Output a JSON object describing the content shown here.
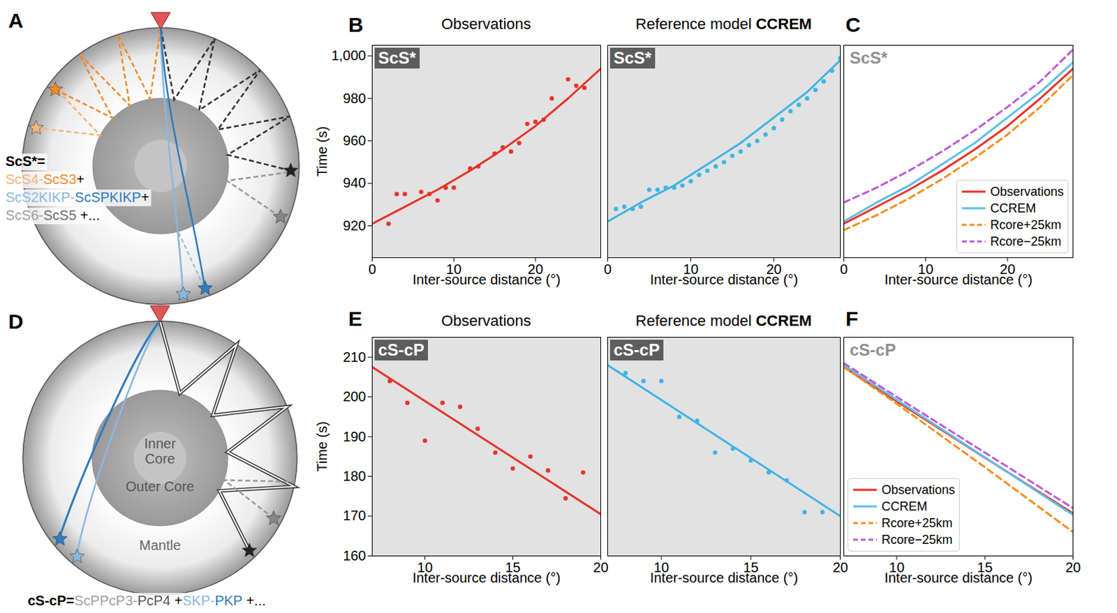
{
  "diagrams": [
    {
      "panel": "A",
      "equation": [
        [
          {
            "text": "ScS*=",
            "color": "#000000"
          }
        ],
        [
          {
            "text": "ScS4-",
            "color": "#f5b47a"
          },
          {
            "text": "ScS3",
            "color": "#f08a24"
          },
          {
            "text": "+",
            "color": "#000000"
          }
        ],
        [
          {
            "text": "ScS2KIKP-",
            "color": "#8ab8e0"
          },
          {
            "text": "ScSPKIKP",
            "color": "#2f7bbf"
          },
          {
            "text": "+",
            "color": "#000000"
          }
        ],
        [
          {
            "text": "ScS6-",
            "color": "#a0a0a0"
          },
          {
            "text": "ScS5",
            "color": "#707070"
          },
          {
            "text": " +...",
            "color": "#000000"
          }
        ]
      ]
    },
    {
      "panel": "D",
      "labels": [
        "Inner Core",
        "Outer Core",
        "Mantle"
      ],
      "equation": [
        [
          {
            "text": "cS-cP=",
            "color": "#000000"
          },
          {
            "text": "ScPPcP3-",
            "color": "#a0a0a0"
          },
          {
            "text": "PcP4",
            "color": "#555555"
          },
          {
            "text": " +",
            "color": "#000000"
          },
          {
            "text": "SKP-",
            "color": "#8ab8e0"
          },
          {
            "text": "PKP",
            "color": "#2f7bbf"
          },
          {
            "text": " +...",
            "color": "#000000"
          }
        ]
      ]
    }
  ],
  "chart_data": [
    {
      "panel": "B",
      "type": "scatter",
      "title": "Observations",
      "inset_label": "ScS*",
      "xlabel": "Inter-source distance (°)",
      "ylabel": "Time (s)",
      "xlim": [
        0,
        28
      ],
      "ylim": [
        905,
        1005
      ],
      "xticks": [
        0,
        10,
        20
      ],
      "yticks": [
        920,
        940,
        960,
        980,
        1000
      ],
      "series": [
        {
          "type": "scatter",
          "color": "#e8332a",
          "x": [
            2,
            3,
            4,
            6,
            7,
            8,
            9,
            10,
            12,
            13,
            15,
            16,
            17,
            18,
            19,
            20,
            21,
            22,
            24,
            25,
            26
          ],
          "values": [
            921,
            935,
            935,
            936,
            935,
            932,
            938,
            938,
            947,
            948,
            954,
            957,
            955,
            959,
            968,
            969,
            970,
            980,
            989,
            986,
            985
          ]
        },
        {
          "type": "line",
          "color": "#e8332a",
          "x": [
            0,
            4,
            8,
            12,
            16,
            20,
            24,
            28
          ],
          "values": [
            921,
            929,
            937,
            946,
            956,
            967,
            980,
            994
          ]
        }
      ]
    },
    {
      "type": "scatter",
      "title": "Reference model CCREM",
      "inset_label": "ScS*",
      "xlabel": "Inter-source distance (°)",
      "xlim": [
        0,
        28
      ],
      "ylim": [
        905,
        1005
      ],
      "xticks": [
        0,
        10,
        20
      ],
      "tick_labels": "x",
      "series": [
        {
          "type": "scatter",
          "color": "#3fb4e6",
          "x": [
            1,
            2,
            3,
            4,
            5,
            6,
            7,
            8,
            9,
            10,
            11,
            12,
            13,
            14,
            15,
            16,
            17,
            18,
            19,
            20,
            21,
            22,
            23,
            24,
            25,
            26,
            27,
            28
          ],
          "values": [
            928,
            929,
            928,
            929,
            937,
            937,
            938,
            938,
            939,
            941,
            944,
            946,
            948,
            950,
            953,
            955,
            958,
            960,
            963,
            966,
            970,
            974,
            977,
            980,
            984,
            988,
            993,
            999
          ]
        },
        {
          "type": "line",
          "color": "#3fb4e6",
          "x": [
            0,
            4,
            8,
            12,
            16,
            20,
            24,
            28
          ],
          "values": [
            922,
            931,
            939,
            949,
            959,
            971,
            983,
            998
          ]
        }
      ]
    },
    {
      "panel": "C",
      "type": "line",
      "inset_label": "ScS*",
      "xlabel": "Inter-source distance (°)",
      "xlim": [
        0,
        28
      ],
      "ylim": [
        905,
        1005
      ],
      "xticks": [
        0,
        10,
        20
      ],
      "tick_labels": "x",
      "legend": "bottom-right",
      "series": [
        {
          "name": "Observations",
          "color": "#e8332a",
          "line_style": "solid",
          "x": [
            0,
            4,
            8,
            12,
            16,
            20,
            24,
            28
          ],
          "values": [
            921,
            929,
            937,
            946,
            956,
            967,
            980,
            994
          ]
        },
        {
          "name": "CCREM",
          "color": "#5bc0e8",
          "line_style": "solid",
          "x": [
            0,
            4,
            8,
            12,
            16,
            20,
            24,
            28
          ],
          "values": [
            922,
            931,
            939,
            949,
            959,
            971,
            983,
            997
          ]
        },
        {
          "name": "Rcore+25km",
          "color": "#f5901e",
          "line_style": "dashed",
          "x": [
            0,
            4,
            8,
            12,
            16,
            20,
            24,
            28
          ],
          "values": [
            918,
            925,
            933,
            942,
            952,
            963,
            976,
            991
          ]
        },
        {
          "name": "Rcore−25km",
          "color": "#c05ad8",
          "line_style": "dashed",
          "x": [
            0,
            4,
            8,
            12,
            16,
            20,
            24,
            28
          ],
          "values": [
            931,
            938,
            946,
            955,
            965,
            976,
            988,
            1003
          ]
        }
      ]
    },
    {
      "panel": "E",
      "type": "scatter",
      "title": "Observations",
      "inset_label": "cS-cP",
      "xlabel": "Inter-source distance (°)",
      "ylabel": "Time (s)",
      "xlim": [
        7,
        20
      ],
      "ylim": [
        160,
        215
      ],
      "xticks": [
        10,
        15,
        20
      ],
      "yticks": [
        160,
        170,
        180,
        190,
        200,
        210
      ],
      "series": [
        {
          "type": "scatter",
          "color": "#e8332a",
          "x": [
            8,
            9,
            10,
            11,
            12,
            13,
            14,
            15,
            16,
            17,
            18,
            19
          ],
          "values": [
            204,
            198.5,
            189,
            198.5,
            197.5,
            192,
            186,
            182,
            185,
            181.5,
            174.5,
            181
          ]
        },
        {
          "type": "line",
          "color": "#e8332a",
          "x": [
            7,
            20
          ],
          "values": [
            207.5,
            170.5
          ]
        }
      ]
    },
    {
      "type": "scatter",
      "title": "Reference model CCREM",
      "inset_label": "cS-cP",
      "xlabel": "Inter-source distance (°)",
      "xlim": [
        7,
        20
      ],
      "ylim": [
        160,
        215
      ],
      "xticks": [
        10,
        15,
        20
      ],
      "tick_labels": "x",
      "series": [
        {
          "type": "scatter",
          "color": "#3fb4e6",
          "x": [
            8,
            9,
            10,
            11,
            12,
            13,
            14,
            15,
            16,
            17,
            18,
            19
          ],
          "values": [
            206,
            204,
            204,
            195,
            194,
            186,
            187,
            184,
            181,
            179,
            171,
            171
          ]
        },
        {
          "type": "line",
          "color": "#3fb4e6",
          "x": [
            7,
            20
          ],
          "values": [
            208,
            170
          ]
        }
      ]
    },
    {
      "panel": "F",
      "type": "line",
      "inset_label": "cS-cP",
      "xlabel": "Inter-source distance (°)",
      "xlim": [
        7,
        20
      ],
      "ylim": [
        160,
        215
      ],
      "xticks": [
        10,
        15,
        20
      ],
      "tick_labels": "x",
      "legend": "bottom-left",
      "series": [
        {
          "name": "Observations",
          "color": "#e8332a",
          "line_style": "solid",
          "x": [
            7,
            10,
            15,
            20
          ],
          "values": [
            207.5,
            198.9,
            184.7,
            170.7
          ]
        },
        {
          "name": "CCREM",
          "color": "#5bc0e8",
          "line_style": "solid",
          "x": [
            7,
            10,
            15,
            20
          ],
          "values": [
            208,
            199.3,
            184.8,
            170.3
          ]
        },
        {
          "name": "Rcore+25km",
          "color": "#f5901e",
          "line_style": "dashed",
          "x": [
            7,
            10,
            15,
            20
          ],
          "values": [
            207.5,
            198.3,
            182.3,
            166
          ]
        },
        {
          "name": "Rcore−25km",
          "color": "#c05ad8",
          "line_style": "dashed",
          "x": [
            7,
            10,
            15,
            20
          ],
          "values": [
            208.5,
            200,
            186,
            172
          ]
        }
      ]
    }
  ]
}
